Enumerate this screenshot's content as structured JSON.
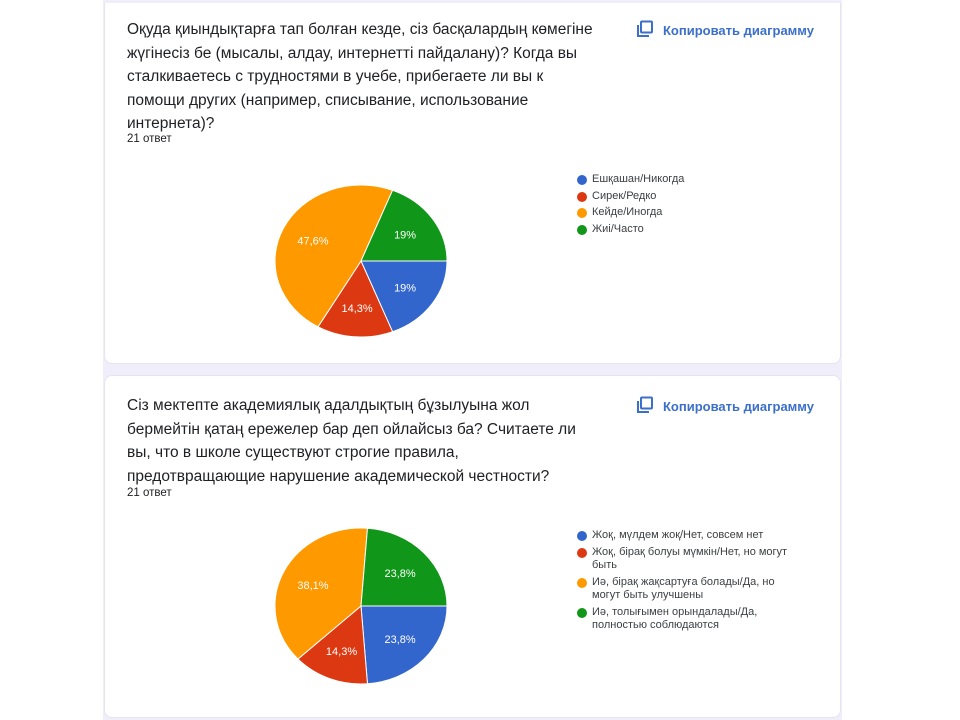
{
  "cards": [
    {
      "question": "Оқуда қиындықтарға тап болған кезде, сіз басқалардың көмегіне жүгінесіз бе (мысалы, алдау, интернетті пайдалану)? Когда вы сталкиваетесь с трудностями в учебе, прибегаете ли вы к помощи других (например, списывание, использование интернета)?",
      "response_count": "21 ответ",
      "copy_label": "Копировать диаграмму",
      "legend": [
        {
          "label": "Ешқашан/Никогда",
          "color": "#3366cc"
        },
        {
          "label": "Сирек/Редко",
          "color": "#dc3912"
        },
        {
          "label": "Кейде/Иногда",
          "color": "#ff9900"
        },
        {
          "label": "Жиі/Часто",
          "color": "#109618"
        }
      ],
      "slice_labels": [
        "19%",
        "14,3%",
        "47,6%",
        "19%"
      ]
    },
    {
      "question": "Сіз мектепте академиялық адалдықтың бұзылуына жол бермейтін қатаң ережелер бар деп ойлайсыз ба?  Считаете ли вы, что в школе существуют строгие правила, предотвращающие нарушение академической честности?",
      "response_count": "21 ответ",
      "copy_label": "Копировать диаграмму",
      "legend": [
        {
          "label": "Жоқ, мүлдем жоқ/Нет, совсем нет",
          "color": "#3366cc"
        },
        {
          "label": "Жоқ, бірақ болуы мүмкін/Нет, но могут быть",
          "color": "#dc3912"
        },
        {
          "label": "Иә, бірақ жақсартуға болады/Да, но могут быть улучшены",
          "color": "#ff9900"
        },
        {
          "label": "Иә, толығымен орындалады/Да, полностью соблюдаются",
          "color": "#109618"
        }
      ],
      "slice_labels": [
        "23,8%",
        "14,3%",
        "38,1%",
        "23,8%"
      ]
    }
  ],
  "chart_data": [
    {
      "type": "pie",
      "title": "Оқуда қиындықтарға тап болған кезде, сіз басқалардың көмегіне жүгінесіз бе (мысалы, алдау, интернетті пайдалану)? Когда вы сталкиваетесь с трудностями в учебе, прибегаете ли вы к помощи других (например, списывание, использование интернета)?",
      "subtitle": "21 ответ",
      "categories": [
        "Ешқашан/Никогда",
        "Сирек/Редко",
        "Кейде/Иногда",
        "Жиі/Часто"
      ],
      "values": [
        19.0,
        14.3,
        47.6,
        19.0
      ],
      "colors": [
        "#3366cc",
        "#dc3912",
        "#ff9900",
        "#109618"
      ],
      "legend_position": "right"
    },
    {
      "type": "pie",
      "title": "Сіз мектепте академиялық адалдықтың бұзылуына жол бермейтін қатаң ережелер бар деп ойлайсыз ба?  Считаете ли вы, что в школе существуют строгие правила, предотвращающие нарушение академической честности?",
      "subtitle": "21 ответ",
      "categories": [
        "Жоқ, мүлдем жоқ/Нет, совсем нет",
        "Жоқ, бірақ болуы мүмкін/Нет, но могут быть",
        "Иә, бірақ жақсартуға болады/Да, но могут быть улучшены",
        "Иә, толығымен орындалады/Да, полностью соблюдаются"
      ],
      "values": [
        23.8,
        14.3,
        38.1,
        23.8
      ],
      "colors": [
        "#3366cc",
        "#dc3912",
        "#ff9900",
        "#109618"
      ],
      "legend_position": "right"
    }
  ]
}
